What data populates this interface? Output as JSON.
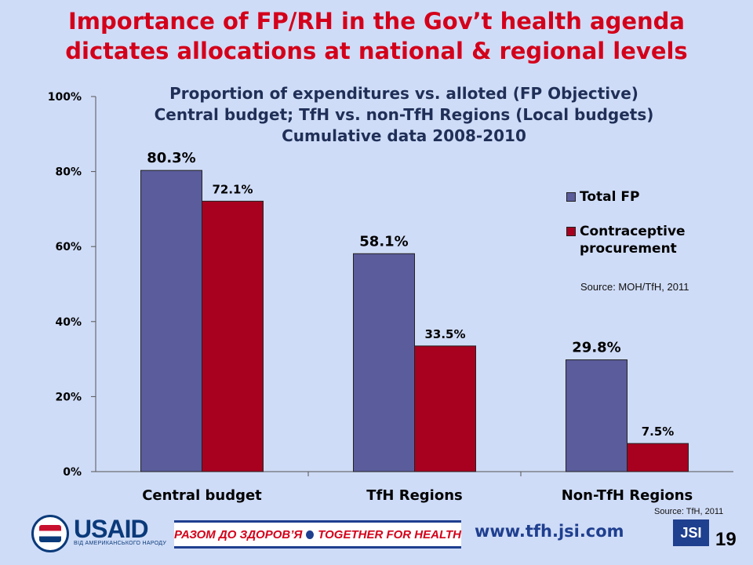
{
  "slide": {
    "title_line1": "Importance of FP/RH in the Gov’t health agenda",
    "title_line2": "dictates allocations at national & regional levels",
    "page_number": "19",
    "website": "www.tfh.jsi.com",
    "usaid_logo_text": "USAID",
    "usaid_subtext": "ВІД АМЕРИКАНСЬКОГО НАРОДУ",
    "together_banner_left": "РАЗОМ ДО ЗДОРОВ’Я",
    "together_banner_right": "TOGETHER FOR HEALTH",
    "jsi_logo_text": "JSI"
  },
  "colors": {
    "title_red": "#d4001a",
    "series_total_fp": "#5b5c9c",
    "series_contraceptive": "#a8001f",
    "background": "#cfdcf7"
  },
  "chart_data": {
    "type": "bar",
    "title_lines": [
      "Proportion of expenditures vs. alloted (FP Objective)",
      "Central budget; TfH vs. non-TfH Regions (Local budgets)",
      "Cumulative data 2008-2010"
    ],
    "categories": [
      "Central budget",
      "TfH Regions",
      "Non-TfH Regions"
    ],
    "series": [
      {
        "name": "Total FP",
        "values": [
          80.3,
          58.1,
          29.8
        ],
        "labels": [
          "80.3%",
          "58.1%",
          "29.8%"
        ],
        "color": "#5b5c9c"
      },
      {
        "name": "Contraceptive procurement",
        "values": [
          72.1,
          33.5,
          7.5
        ],
        "labels": [
          "72.1%",
          "33.5%",
          "7.5%"
        ],
        "color": "#a8001f"
      }
    ],
    "ylim": [
      0,
      100
    ],
    "yticks": [
      "0%",
      "20%",
      "40%",
      "60%",
      "80%",
      "100%"
    ],
    "legend_position": "right",
    "grid": false,
    "source_notes": [
      "Source: MOH/TfH, 2011",
      "Source: TfH, 2011"
    ]
  }
}
